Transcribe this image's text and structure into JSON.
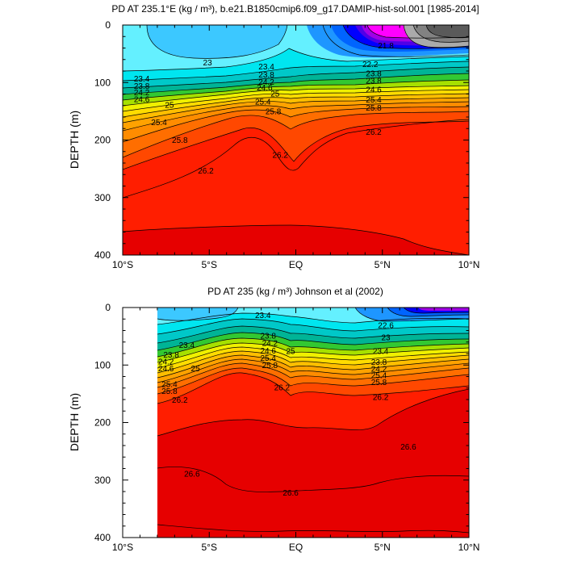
{
  "chart_data": [
    {
      "type": "heatmap",
      "title": "PD AT 235.1°E (kg / m³), b.e21.B1850cmip6.f09_g17.DAMIP-hist-sol.001 [1985-2014]",
      "ylabel": "DEPTH (m)",
      "xlabel": "",
      "xlim": [
        -10,
        10
      ],
      "ylim": [
        400,
        0
      ],
      "x_ticks": [
        -10,
        -5,
        0,
        5,
        10
      ],
      "x_tick_labels": [
        "10°S",
        "5°S",
        "EQ",
        "5°N",
        "10°N"
      ],
      "y_ticks": [
        0,
        100,
        200,
        300,
        400
      ],
      "y_tick_labels": [
        "0",
        "100",
        "200",
        "300",
        "400"
      ],
      "contour_interval": 0.4,
      "contour_labels": [
        {
          "x": -5.1,
          "y": 65,
          "text": "23"
        },
        {
          "x": -1.7,
          "y": 72,
          "text": "23.4"
        },
        {
          "x": -8.9,
          "y": 93,
          "text": "23.4"
        },
        {
          "x": -8.9,
          "y": 106,
          "text": "23.8"
        },
        {
          "x": -8.9,
          "y": 117,
          "text": "24.2"
        },
        {
          "x": -8.9,
          "y": 129,
          "text": "24.6"
        },
        {
          "x": -7.3,
          "y": 139,
          "text": "25"
        },
        {
          "x": -7.9,
          "y": 169,
          "text": "25.4"
        },
        {
          "x": -6.7,
          "y": 200,
          "text": "25.8"
        },
        {
          "x": -5.2,
          "y": 253,
          "text": "26.2"
        },
        {
          "x": -1.7,
          "y": 86,
          "text": "23.8"
        },
        {
          "x": -1.7,
          "y": 99,
          "text": "24.2"
        },
        {
          "x": -1.8,
          "y": 109,
          "text": "24.6"
        },
        {
          "x": -1.2,
          "y": 119,
          "text": "25"
        },
        {
          "x": -1.9,
          "y": 133,
          "text": "25.4"
        },
        {
          "x": -1.3,
          "y": 150,
          "text": "25.8"
        },
        {
          "x": -0.9,
          "y": 226,
          "text": "26.2"
        },
        {
          "x": 4.3,
          "y": 68,
          "text": "22.2"
        },
        {
          "x": 4.5,
          "y": 84,
          "text": "23.8"
        },
        {
          "x": 4.5,
          "y": 97,
          "text": "23.8"
        },
        {
          "x": 4.5,
          "y": 112,
          "text": "24.6"
        },
        {
          "x": 4.5,
          "y": 130,
          "text": "25.4"
        },
        {
          "x": 4.5,
          "y": 144,
          "text": "25.8"
        },
        {
          "x": 4.5,
          "y": 186,
          "text": "26.2"
        },
        {
          "x": 5.2,
          "y": 36,
          "text": "21.8"
        }
      ]
    },
    {
      "type": "heatmap",
      "title": "PD AT 235 (kg / m³) Johnson et al (2002)",
      "ylabel": "DEPTH (m)",
      "xlabel": "",
      "xlim": [
        -10,
        10
      ],
      "ylim": [
        400,
        0
      ],
      "data_x_start": -8,
      "x_ticks": [
        -10,
        -5,
        0,
        5,
        10
      ],
      "x_tick_labels": [
        "10°S",
        "5°S",
        "EQ",
        "5°N",
        "10°N"
      ],
      "y_ticks": [
        0,
        100,
        200,
        300,
        400
      ],
      "y_tick_labels": [
        "0",
        "100",
        "200",
        "300",
        "400"
      ],
      "contour_interval": 0.4,
      "contour_labels": [
        {
          "x": -1.9,
          "y": 13,
          "text": "23.4"
        },
        {
          "x": -6.3,
          "y": 65,
          "text": "23.4"
        },
        {
          "x": -7.2,
          "y": 82,
          "text": "23.8"
        },
        {
          "x": -7.5,
          "y": 94,
          "text": "24.2"
        },
        {
          "x": -7.5,
          "y": 106,
          "text": "24.6"
        },
        {
          "x": -5.8,
          "y": 106,
          "text": "25"
        },
        {
          "x": -1.6,
          "y": 49,
          "text": "23.8"
        },
        {
          "x": -1.5,
          "y": 62,
          "text": "24.2"
        },
        {
          "x": -1.6,
          "y": 75,
          "text": "24.6"
        },
        {
          "x": -0.3,
          "y": 76,
          "text": "25"
        },
        {
          "x": -1.6,
          "y": 88,
          "text": "25.4"
        },
        {
          "x": -1.5,
          "y": 100,
          "text": "25.8"
        },
        {
          "x": -7.3,
          "y": 133,
          "text": "25.4"
        },
        {
          "x": -7.3,
          "y": 145,
          "text": "25.8"
        },
        {
          "x": -6.7,
          "y": 161,
          "text": "26.2"
        },
        {
          "x": -0.8,
          "y": 139,
          "text": "26.2"
        },
        {
          "x": 5.2,
          "y": 31,
          "text": "22.6"
        },
        {
          "x": 5.2,
          "y": 52,
          "text": "23"
        },
        {
          "x": 4.9,
          "y": 76,
          "text": "23.4"
        },
        {
          "x": 4.8,
          "y": 95,
          "text": "23.8"
        },
        {
          "x": 4.8,
          "y": 107,
          "text": "24.2"
        },
        {
          "x": 4.8,
          "y": 118,
          "text": "25.4"
        },
        {
          "x": 4.8,
          "y": 130,
          "text": "25.8"
        },
        {
          "x": 4.9,
          "y": 156,
          "text": "26.2"
        },
        {
          "x": 6.5,
          "y": 242,
          "text": "26.6"
        },
        {
          "x": -6.0,
          "y": 289,
          "text": "26.6"
        },
        {
          "x": -0.3,
          "y": 322,
          "text": "26.6"
        }
      ]
    }
  ]
}
